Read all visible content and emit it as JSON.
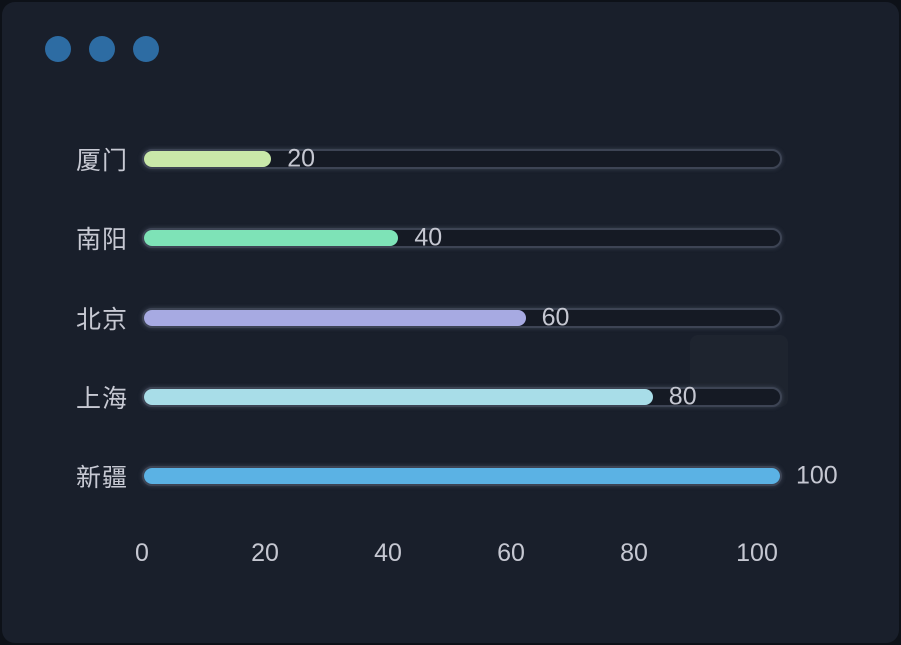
{
  "window": {
    "outer_background": "#0d1118",
    "background": "#191f2b",
    "dots": {
      "count": 3,
      "color": "#2d6ca3"
    }
  },
  "chart_data": {
    "type": "bar",
    "orientation": "horizontal",
    "title": "",
    "categories": [
      "厦门",
      "南阳",
      "北京",
      "上海",
      "新疆"
    ],
    "values": [
      20,
      40,
      60,
      80,
      100
    ],
    "value_labels": [
      "20",
      "40",
      "60",
      "80",
      "100"
    ],
    "bar_colors": [
      "#c9e8a9",
      "#7ee3b7",
      "#a7aae2",
      "#a8dde8",
      "#5bb2e4"
    ],
    "x_ticks": [
      "0",
      "20",
      "40",
      "60",
      "80",
      "100"
    ],
    "xlim": [
      0,
      100
    ],
    "xlabel": "",
    "ylabel": "",
    "grid": false,
    "legend": "none",
    "value_label_position": "after-bar-end",
    "track": {
      "border_color": "#3d4454",
      "background": "#151a24"
    },
    "text_color": "#c7c9d3"
  },
  "layout": {
    "row_tops": [
      147,
      226,
      306,
      385,
      464
    ],
    "track_left": 140,
    "track_inner_width": 636,
    "tick_start_x": 140,
    "tick_step_x": 123
  }
}
